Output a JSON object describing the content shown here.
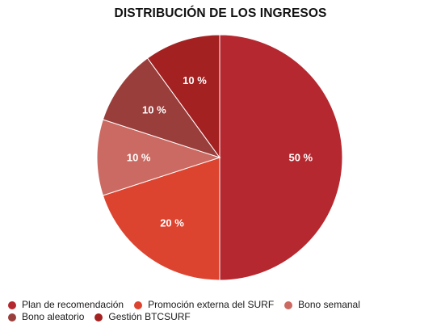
{
  "chart_data": {
    "type": "pie",
    "title": "DISTRIBUCIÓN DE LOS INGRESOS",
    "slices": [
      {
        "name": "Plan de recomendación",
        "value": 50,
        "label": "50 %",
        "color": "#b5282f"
      },
      {
        "name": "Promoción externa del SURF",
        "value": 20,
        "label": "20 %",
        "color": "#dc4430"
      },
      {
        "name": "Bono semanal",
        "value": 10,
        "label": "10 %",
        "color": "#cb6a62"
      },
      {
        "name": "Bono aleatorio",
        "value": 10,
        "label": "10 %",
        "color": "#9a3e3c"
      },
      {
        "name": "Gestión BTCSURF",
        "value": 10,
        "label": "10 %",
        "color": "#a32121"
      }
    ],
    "start_angle": "top",
    "direction": "clockwise",
    "legend_position": "bottom"
  }
}
